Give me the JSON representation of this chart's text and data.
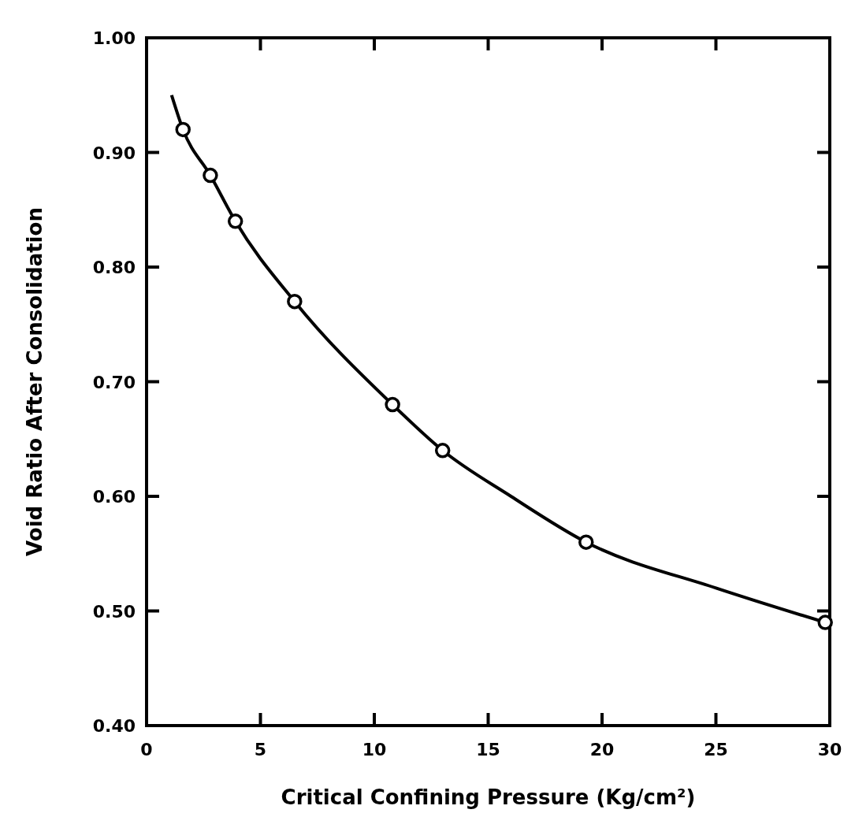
{
  "chart_data": {
    "type": "scatter",
    "xlabel": "Critical Confining Pressure (Kg/cm²)",
    "ylabel": "Void Ratio After Consolidation",
    "xlim": [
      0,
      30
    ],
    "ylim": [
      0.4,
      1.0
    ],
    "xticks": [
      0,
      5,
      10,
      15,
      20,
      25,
      30
    ],
    "yticks": [
      {
        "value": 0.4,
        "label": "0.40"
      },
      {
        "value": 0.5,
        "label": "0.50"
      },
      {
        "value": 0.6,
        "label": "0.60"
      },
      {
        "value": 0.7,
        "label": "0.70"
      },
      {
        "value": 0.8,
        "label": "0.80"
      },
      {
        "value": 0.9,
        "label": "0.90"
      },
      {
        "value": 1.0,
        "label": "1.00"
      }
    ],
    "grid": false,
    "series": [
      {
        "type": "line",
        "color": "#000000",
        "marker": "none",
        "line_style": "solid",
        "x": [
          1.1,
          1.6,
          2.8,
          3.9,
          6.5,
          10.8,
          13,
          16,
          19.3,
          25,
          29.8
        ],
        "values": [
          0.95,
          0.92,
          0.88,
          0.84,
          0.77,
          0.68,
          0.64,
          0.6,
          0.56,
          0.52,
          0.49
        ]
      },
      {
        "color": "#000000",
        "marker": "circle",
        "x": [
          1.6,
          2.8,
          3.9,
          6.5,
          10.8,
          13,
          19.3,
          29.8
        ],
        "values": [
          0.92,
          0.88,
          0.84,
          0.77,
          0.68,
          0.64,
          0.56,
          0.49
        ]
      }
    ]
  }
}
